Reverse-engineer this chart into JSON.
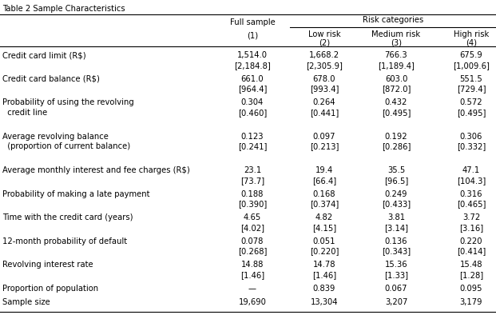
{
  "title": "Table 2 Sample Characteristics",
  "header_top": "Risk categories",
  "col_headers": [
    [
      "Full sample",
      "(1)"
    ],
    [
      "Low risk",
      "(2)"
    ],
    [
      "Medium risk",
      "(3)"
    ],
    [
      "High risk",
      "(4)"
    ]
  ],
  "rows": [
    {
      "label1": "Credit card limit (R$)",
      "label2": "",
      "values": [
        "1,514.0",
        "1,668.2",
        "766.3",
        "675.9"
      ],
      "std": [
        "[2,184.8]",
        "[2,305.9]",
        "[1,189.4]",
        "[1,009.6]"
      ]
    },
    {
      "label1": "Credit card balance (R$)",
      "label2": "",
      "values": [
        "661.0",
        "678.0",
        "603.0",
        "551.5"
      ],
      "std": [
        "[964.4]",
        "[993.4]",
        "[872.0]",
        "[729.4]"
      ]
    },
    {
      "label1": "Probability of using the revolving",
      "label2": "  credit line",
      "values": [
        "0.304",
        "0.264",
        "0.432",
        "0.572"
      ],
      "std": [
        "[0.460]",
        "[0.441]",
        "[0.495]",
        "[0.495]"
      ]
    },
    {
      "label1": "Average revolving balance",
      "label2": "  (proportion of current balance)",
      "values": [
        "0.123",
        "0.097",
        "0.192",
        "0.306"
      ],
      "std": [
        "[0.241]",
        "[0.213]",
        "[0.286]",
        "[0.332]"
      ]
    },
    {
      "label1": "Average monthly interest and fee charges (R$)",
      "label2": "",
      "values": [
        "23.1",
        "19.4",
        "35.5",
        "47.1"
      ],
      "std": [
        "[73.7]",
        "[66.4]",
        "[96.5]",
        "[104.3]"
      ]
    },
    {
      "label1": "Probability of making a late payment",
      "label2": "",
      "values": [
        "0.188",
        "0.168",
        "0.249",
        "0.316"
      ],
      "std": [
        "[0.390]",
        "[0.374]",
        "[0.433]",
        "[0.465]"
      ]
    },
    {
      "label1": "Time with the credit card (years)",
      "label2": "",
      "values": [
        "4.65",
        "4.82",
        "3.81",
        "3.72"
      ],
      "std": [
        "[4.02]",
        "[4.15]",
        "[3.14]",
        "[3.16]"
      ]
    },
    {
      "label1": "12-month probability of default",
      "label2": "",
      "values": [
        "0.078",
        "0.051",
        "0.136",
        "0.220"
      ],
      "std": [
        "[0.268]",
        "[0.220]",
        "[0.343]",
        "[0.414]"
      ]
    },
    {
      "label1": "Revolving interest rate",
      "label2": "",
      "values": [
        "14.88",
        "14.78",
        "15.36",
        "15.48"
      ],
      "std": [
        "[1.46]",
        "[1.46]",
        "[1.33]",
        "[1.28]"
      ]
    },
    {
      "label1": "Proportion of population",
      "label2": "",
      "values": [
        "—",
        "0.839",
        "0.067",
        "0.095"
      ],
      "std": [
        "",
        "",
        "",
        ""
      ]
    },
    {
      "label1": "Sample size",
      "label2": "",
      "values": [
        "19,690",
        "13,304",
        "3,207",
        "3,179"
      ],
      "std": [
        "",
        "",
        "",
        ""
      ]
    }
  ],
  "bg_color": "#ffffff",
  "font_size": 7.2
}
